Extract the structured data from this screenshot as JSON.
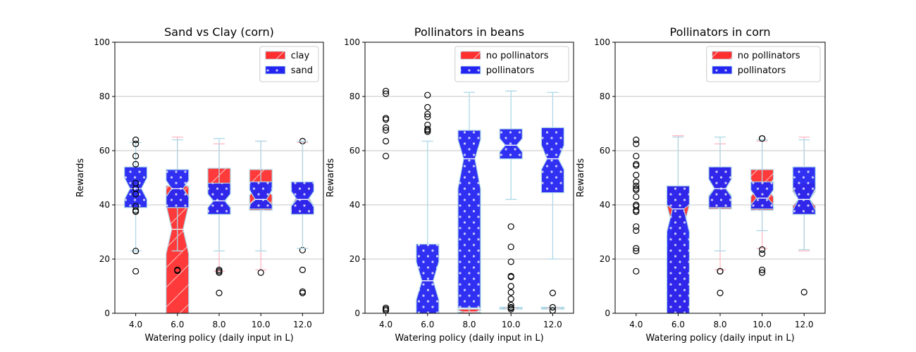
{
  "colors": {
    "red": "#ff2f2f",
    "blue": "#2525f2",
    "overlap": "#3a10d8",
    "whisker_blue": "#add8e6",
    "whisker_red": "#ffb6c1",
    "grid": "#b0b0b0"
  },
  "chart_data": [
    {
      "type": "box",
      "title": "Sand vs Clay (corn)",
      "xlabel": "Watering policy (daily input in L)",
      "ylabel": "Rewards",
      "ylim": [
        0,
        100
      ],
      "yticks": [
        0,
        20,
        40,
        60,
        80,
        100
      ],
      "grid": "y",
      "legend_position": "top-right",
      "categories": [
        "4.0",
        "6.0",
        "8.0",
        "10.0",
        "12.0"
      ],
      "series": [
        {
          "name": "clay",
          "color_key": "red",
          "hatch": "diagonal",
          "boxes": [
            {
              "q1": 0,
              "median": 0,
              "q3": 0,
              "notch_lo": 0,
              "notch_hi": 0,
              "whislo": 0,
              "whishi": 0,
              "fliers": []
            },
            {
              "q1": 0,
              "median": 31,
              "q3": 47,
              "notch_lo": 22,
              "notch_hi": 40,
              "whislo": 0,
              "whishi": 65,
              "fliers": [
                15.7
              ]
            },
            {
              "q1": 37,
              "median": 41,
              "q3": 53.5,
              "notch_lo": 37.5,
              "notch_hi": 44.5,
              "whislo": 15.5,
              "whishi": 62.5,
              "fliers": [
                16,
                15,
                7.5
              ]
            },
            {
              "q1": 38,
              "median": 46,
              "q3": 53,
              "notch_lo": 43.5,
              "notch_hi": 48.5,
              "whislo": 16,
              "whishi": 63.5,
              "fliers": [
                15
              ]
            },
            {
              "q1": 36.5,
              "median": 43,
              "q3": 48,
              "notch_lo": 39.5,
              "notch_hi": 46.5,
              "whislo": 24,
              "whishi": 63,
              "fliers": [
                63.5,
                23.3,
                16,
                8,
                7.5
              ]
            }
          ]
        },
        {
          "name": "sand",
          "color_key": "blue",
          "hatch": "dots",
          "boxes": [
            {
              "q1": 39,
              "median": 46,
              "q3": 54,
              "notch_lo": 42,
              "notch_hi": 50,
              "whislo": 23,
              "whishi": 63,
              "fliers": [
                64,
                62.5,
                58,
                55,
                48,
                46,
                44,
                39.5,
                38,
                37.5,
                23,
                15.5
              ]
            },
            {
              "q1": 39,
              "median": 46,
              "q3": 53,
              "notch_lo": 43,
              "notch_hi": 49,
              "whislo": 23,
              "whishi": 64,
              "fliers": [
                16
              ]
            },
            {
              "q1": 36.5,
              "median": 41.5,
              "q3": 48,
              "notch_lo": 39,
              "notch_hi": 44,
              "whislo": 23,
              "whishi": 64.5,
              "fliers": [
                15.5
              ]
            },
            {
              "q1": 38.5,
              "median": 42,
              "q3": 48.5,
              "notch_lo": 40,
              "notch_hi": 45.5,
              "whislo": 23,
              "whishi": 63.5,
              "fliers": []
            },
            {
              "q1": 36.5,
              "median": 42,
              "q3": 48.5,
              "notch_lo": 39.5,
              "notch_hi": 45,
              "whislo": 24,
              "whishi": 63.5,
              "fliers": []
            }
          ]
        }
      ]
    },
    {
      "type": "box",
      "title": "Pollinators in beans",
      "xlabel": "Watering policy (daily input in L)",
      "ylabel": "Rewards",
      "ylim": [
        0,
        100
      ],
      "yticks": [
        0,
        20,
        40,
        60,
        80,
        100
      ],
      "grid": "y",
      "legend_position": "top-right",
      "categories": [
        "4.0",
        "6.0",
        "8.0",
        "10.0",
        "12.0"
      ],
      "series": [
        {
          "name": "no pollinators",
          "color_key": "red",
          "hatch": "diagonal",
          "boxes": [
            {
              "q1": 0,
              "median": 0,
              "q3": 0,
              "notch_lo": 0,
              "notch_hi": 0,
              "whislo": 0,
              "whishi": 0,
              "fliers": []
            },
            {
              "q1": 0,
              "median": 0.5,
              "q3": 1.2,
              "notch_lo": 0.3,
              "notch_hi": 0.8,
              "whislo": 0,
              "whishi": 1.2,
              "fliers": []
            },
            {
              "q1": 0,
              "median": 0.5,
              "q3": 1.5,
              "notch_lo": 0.3,
              "notch_hi": 1,
              "whislo": 0,
              "whishi": 1.5,
              "fliers": []
            },
            {
              "q1": 1.5,
              "median": 1.8,
              "q3": 2.2,
              "notch_lo": 1.6,
              "notch_hi": 2,
              "whislo": 1.5,
              "whishi": 2.2,
              "fliers": []
            },
            {
              "q1": 1.5,
              "median": 1.8,
              "q3": 2.2,
              "notch_lo": 1.6,
              "notch_hi": 2,
              "whislo": 1.5,
              "whishi": 2.2,
              "fliers": []
            }
          ]
        },
        {
          "name": "pollinators",
          "color_key": "blue",
          "hatch": "dots",
          "boxes": [
            {
              "q1": 0,
              "median": 0,
              "q3": 0,
              "notch_lo": 0,
              "notch_hi": 0,
              "whislo": 0,
              "whishi": 0,
              "fliers": [
                82,
                81,
                72,
                71.5,
                68.5,
                67.5,
                63.5,
                58,
                2,
                1.5,
                1
              ]
            },
            {
              "q1": 0,
              "median": 12,
              "q3": 25.5,
              "notch_lo": 5,
              "notch_hi": 19,
              "whislo": 0,
              "whishi": 63.5,
              "fliers": [
                80.5,
                76,
                73.5,
                72.5,
                69.5,
                68,
                67.5,
                67
              ]
            },
            {
              "q1": 2,
              "median": 57,
              "q3": 67.5,
              "notch_lo": 46,
              "notch_hi": 64,
              "whislo": 0,
              "whishi": 81.5,
              "fliers": []
            },
            {
              "q1": 57,
              "median": 62,
              "q3": 68,
              "notch_lo": 59.5,
              "notch_hi": 64.5,
              "whislo": 42,
              "whishi": 82,
              "fliers": [
                32,
                24.5,
                19,
                13.7,
                13.4,
                10,
                7.7,
                5.3,
                3,
                2.2,
                2,
                1.5
              ]
            },
            {
              "q1": 44.5,
              "median": 57,
              "q3": 68.5,
              "notch_lo": 53,
              "notch_hi": 62,
              "whislo": 20,
              "whishi": 81.5,
              "fliers": [
                7.5,
                2.2,
                1
              ]
            }
          ]
        }
      ]
    },
    {
      "type": "box",
      "title": "Pollinators in corn",
      "xlabel": "Watering policy (daily input in L)",
      "ylabel": "Rewards",
      "ylim": [
        0,
        100
      ],
      "yticks": [
        0,
        20,
        40,
        60,
        80,
        100
      ],
      "grid": "y",
      "legend_position": "top-right",
      "categories": [
        "4.0",
        "6.0",
        "8.0",
        "10.0",
        "12.0"
      ],
      "series": [
        {
          "name": "no pollinators",
          "color_key": "red",
          "hatch": "diagonal",
          "boxes": [
            {
              "q1": 0,
              "median": 0,
              "q3": 0,
              "notch_lo": 0,
              "notch_hi": 0,
              "whislo": 0,
              "whishi": 0,
              "fliers": []
            },
            {
              "q1": 0,
              "median": 32,
              "q3": 47,
              "notch_lo": 22,
              "notch_hi": 40,
              "whislo": 0,
              "whishi": 65.5,
              "fliers": []
            },
            {
              "q1": 38.5,
              "median": 46,
              "q3": 54,
              "notch_lo": 43.5,
              "notch_hi": 49.5,
              "whislo": 16,
              "whishi": 62.5,
              "fliers": [
                15.5
              ]
            },
            {
              "q1": 38,
              "median": 46,
              "q3": 53,
              "notch_lo": 43,
              "notch_hi": 49.5,
              "whislo": 24,
              "whishi": 63.5,
              "fliers": [
                64.5,
                16,
                15
              ]
            },
            {
              "q1": 36.5,
              "median": 42,
              "q3": 48,
              "notch_lo": 39.5,
              "notch_hi": 45,
              "whislo": 23,
              "whishi": 65,
              "fliers": []
            }
          ]
        },
        {
          "name": "pollinators",
          "color_key": "blue",
          "hatch": "dots",
          "boxes": [
            {
              "q1": 0,
              "median": 0,
              "q3": 0,
              "notch_lo": 0,
              "notch_hi": 0,
              "whislo": 0,
              "whishi": 0,
              "fliers": [
                64,
                62.5,
                58,
                55,
                54.5,
                51,
                48.5,
                47,
                46,
                45.5,
                43,
                40,
                39.5,
                38,
                37.5,
                32,
                30.5,
                24,
                23,
                15.5
              ]
            },
            {
              "q1": 0,
              "median": 38.5,
              "q3": 47,
              "notch_lo": 30,
              "notch_hi": 40,
              "whislo": 0,
              "whishi": 65,
              "fliers": []
            },
            {
              "q1": 39,
              "median": 46,
              "q3": 54,
              "notch_lo": 43,
              "notch_hi": 49.5,
              "whislo": 23,
              "whishi": 65,
              "fliers": [
                15.5,
                7.5
              ]
            },
            {
              "q1": 38.5,
              "median": 42.5,
              "q3": 48.5,
              "notch_lo": 40,
              "notch_hi": 45.5,
              "whislo": 30.5,
              "whishi": 64,
              "fliers": [
                64.5,
                23.5,
                22
              ]
            },
            {
              "q1": 36.5,
              "median": 42,
              "q3": 54,
              "notch_lo": 38,
              "notch_hi": 46,
              "whislo": 23.5,
              "whishi": 64,
              "fliers": [
                7.8
              ]
            }
          ]
        }
      ]
    }
  ]
}
